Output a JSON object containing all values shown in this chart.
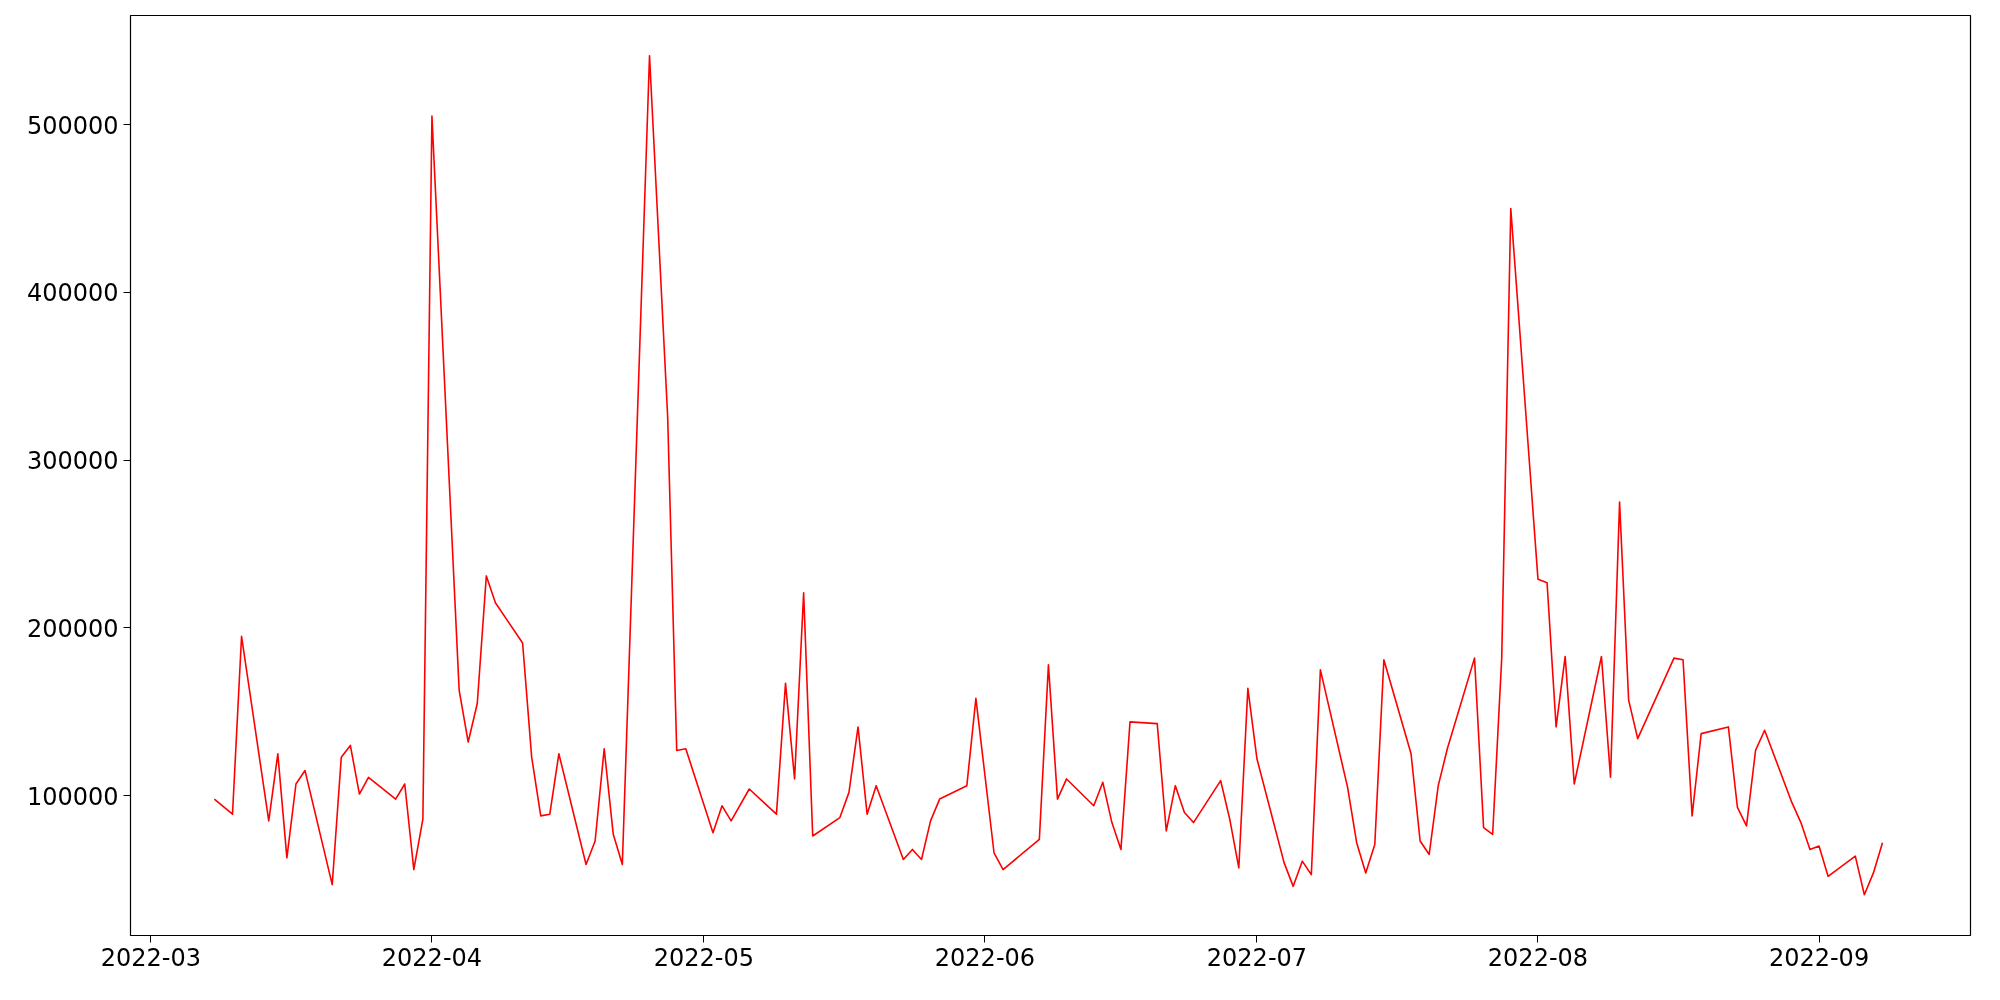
{
  "chart_data": {
    "type": "line",
    "color": "#ff0000",
    "grid": false,
    "line_style": "solid",
    "marker": "none",
    "x": [
      "2022-03-08",
      "2022-03-10",
      "2022-03-11",
      "2022-03-14",
      "2022-03-15",
      "2022-03-16",
      "2022-03-17",
      "2022-03-18",
      "2022-03-21",
      "2022-03-22",
      "2022-03-23",
      "2022-03-24",
      "2022-03-25",
      "2022-03-28",
      "2022-03-29",
      "2022-03-30",
      "2022-03-31",
      "2022-04-01",
      "2022-04-04",
      "2022-04-05",
      "2022-04-06",
      "2022-04-07",
      "2022-04-08",
      "2022-04-11",
      "2022-04-12",
      "2022-04-13",
      "2022-04-14",
      "2022-04-15",
      "2022-04-18",
      "2022-04-19",
      "2022-04-20",
      "2022-04-21",
      "2022-04-22",
      "2022-04-25",
      "2022-04-27",
      "2022-04-28",
      "2022-04-29",
      "2022-05-02",
      "2022-05-03",
      "2022-05-04",
      "2022-05-06",
      "2022-05-09",
      "2022-05-10",
      "2022-05-11",
      "2022-05-12",
      "2022-05-13",
      "2022-05-16",
      "2022-05-17",
      "2022-05-18",
      "2022-05-19",
      "2022-05-20",
      "2022-05-23",
      "2022-05-24",
      "2022-05-25",
      "2022-05-26",
      "2022-05-27",
      "2022-05-30",
      "2022-05-31",
      "2022-06-02",
      "2022-06-03",
      "2022-06-07",
      "2022-06-08",
      "2022-06-09",
      "2022-06-10",
      "2022-06-13",
      "2022-06-14",
      "2022-06-15",
      "2022-06-16",
      "2022-06-17",
      "2022-06-20",
      "2022-06-21",
      "2022-06-22",
      "2022-06-23",
      "2022-06-24",
      "2022-06-27",
      "2022-06-28",
      "2022-06-29",
      "2022-06-30",
      "2022-07-01",
      "2022-07-04",
      "2022-07-05",
      "2022-07-06",
      "2022-07-07",
      "2022-07-08",
      "2022-07-11",
      "2022-07-12",
      "2022-07-13",
      "2022-07-14",
      "2022-07-15",
      "2022-07-18",
      "2022-07-19",
      "2022-07-20",
      "2022-07-21",
      "2022-07-22",
      "2022-07-25",
      "2022-07-26",
      "2022-07-27",
      "2022-07-28",
      "2022-07-29",
      "2022-08-01",
      "2022-08-02",
      "2022-08-03",
      "2022-08-04",
      "2022-08-05",
      "2022-08-08",
      "2022-08-09",
      "2022-08-10",
      "2022-08-11",
      "2022-08-12",
      "2022-08-16",
      "2022-08-17",
      "2022-08-18",
      "2022-08-19",
      "2022-08-22",
      "2022-08-23",
      "2022-08-24",
      "2022-08-25",
      "2022-08-26",
      "2022-08-29",
      "2022-08-30",
      "2022-08-31",
      "2022-09-01",
      "2022-09-02",
      "2022-09-05",
      "2022-09-06",
      "2022-09-07",
      "2022-09-08"
    ],
    "values": [
      98000,
      89000,
      195000,
      85000,
      125000,
      63000,
      107000,
      115000,
      47000,
      123000,
      130000,
      101000,
      111000,
      98000,
      107000,
      56000,
      86000,
      505000,
      163000,
      132000,
      155000,
      231000,
      215000,
      191000,
      123000,
      88000,
      89000,
      125000,
      59000,
      73000,
      128000,
      77000,
      59000,
      541000,
      326000,
      127000,
      128000,
      78000,
      94000,
      85000,
      104000,
      89000,
      167000,
      110000,
      221000,
      76000,
      87000,
      102000,
      141000,
      89000,
      106000,
      62000,
      68000,
      62000,
      85000,
      98000,
      106000,
      158000,
      66000,
      56000,
      74000,
      178000,
      98000,
      110000,
      94000,
      108000,
      84000,
      68000,
      144000,
      143000,
      79000,
      106000,
      90000,
      84000,
      109000,
      86000,
      57000,
      164000,
      122000,
      60000,
      46000,
      61000,
      53000,
      175000,
      105000,
      72000,
      54000,
      71000,
      181000,
      125000,
      73000,
      65000,
      106000,
      128000,
      182000,
      81000,
      77000,
      182000,
      450000,
      229000,
      227000,
      141000,
      183000,
      107000,
      183000,
      111000,
      275000,
      157000,
      134000,
      182000,
      181000,
      88000,
      137000,
      141000,
      93000,
      82000,
      127000,
      139000,
      96000,
      84000,
      68000,
      70000,
      52000,
      64000,
      41000,
      54000,
      72000
    ],
    "xlim": [
      "2022-02-26T18:00",
      "2022-09-17T17:00"
    ],
    "xticks": [
      {
        "value": "2022-03-01",
        "label": "2022-03"
      },
      {
        "value": "2022-04-01",
        "label": "2022-04"
      },
      {
        "value": "2022-05-01",
        "label": "2022-05"
      },
      {
        "value": "2022-06-01",
        "label": "2022-06"
      },
      {
        "value": "2022-07-01",
        "label": "2022-07"
      },
      {
        "value": "2022-08-01",
        "label": "2022-08"
      },
      {
        "value": "2022-09-01",
        "label": "2022-09"
      }
    ],
    "ylim": [
      16700,
      565000
    ],
    "yticks": [
      100000,
      200000,
      300000,
      400000,
      500000
    ]
  }
}
